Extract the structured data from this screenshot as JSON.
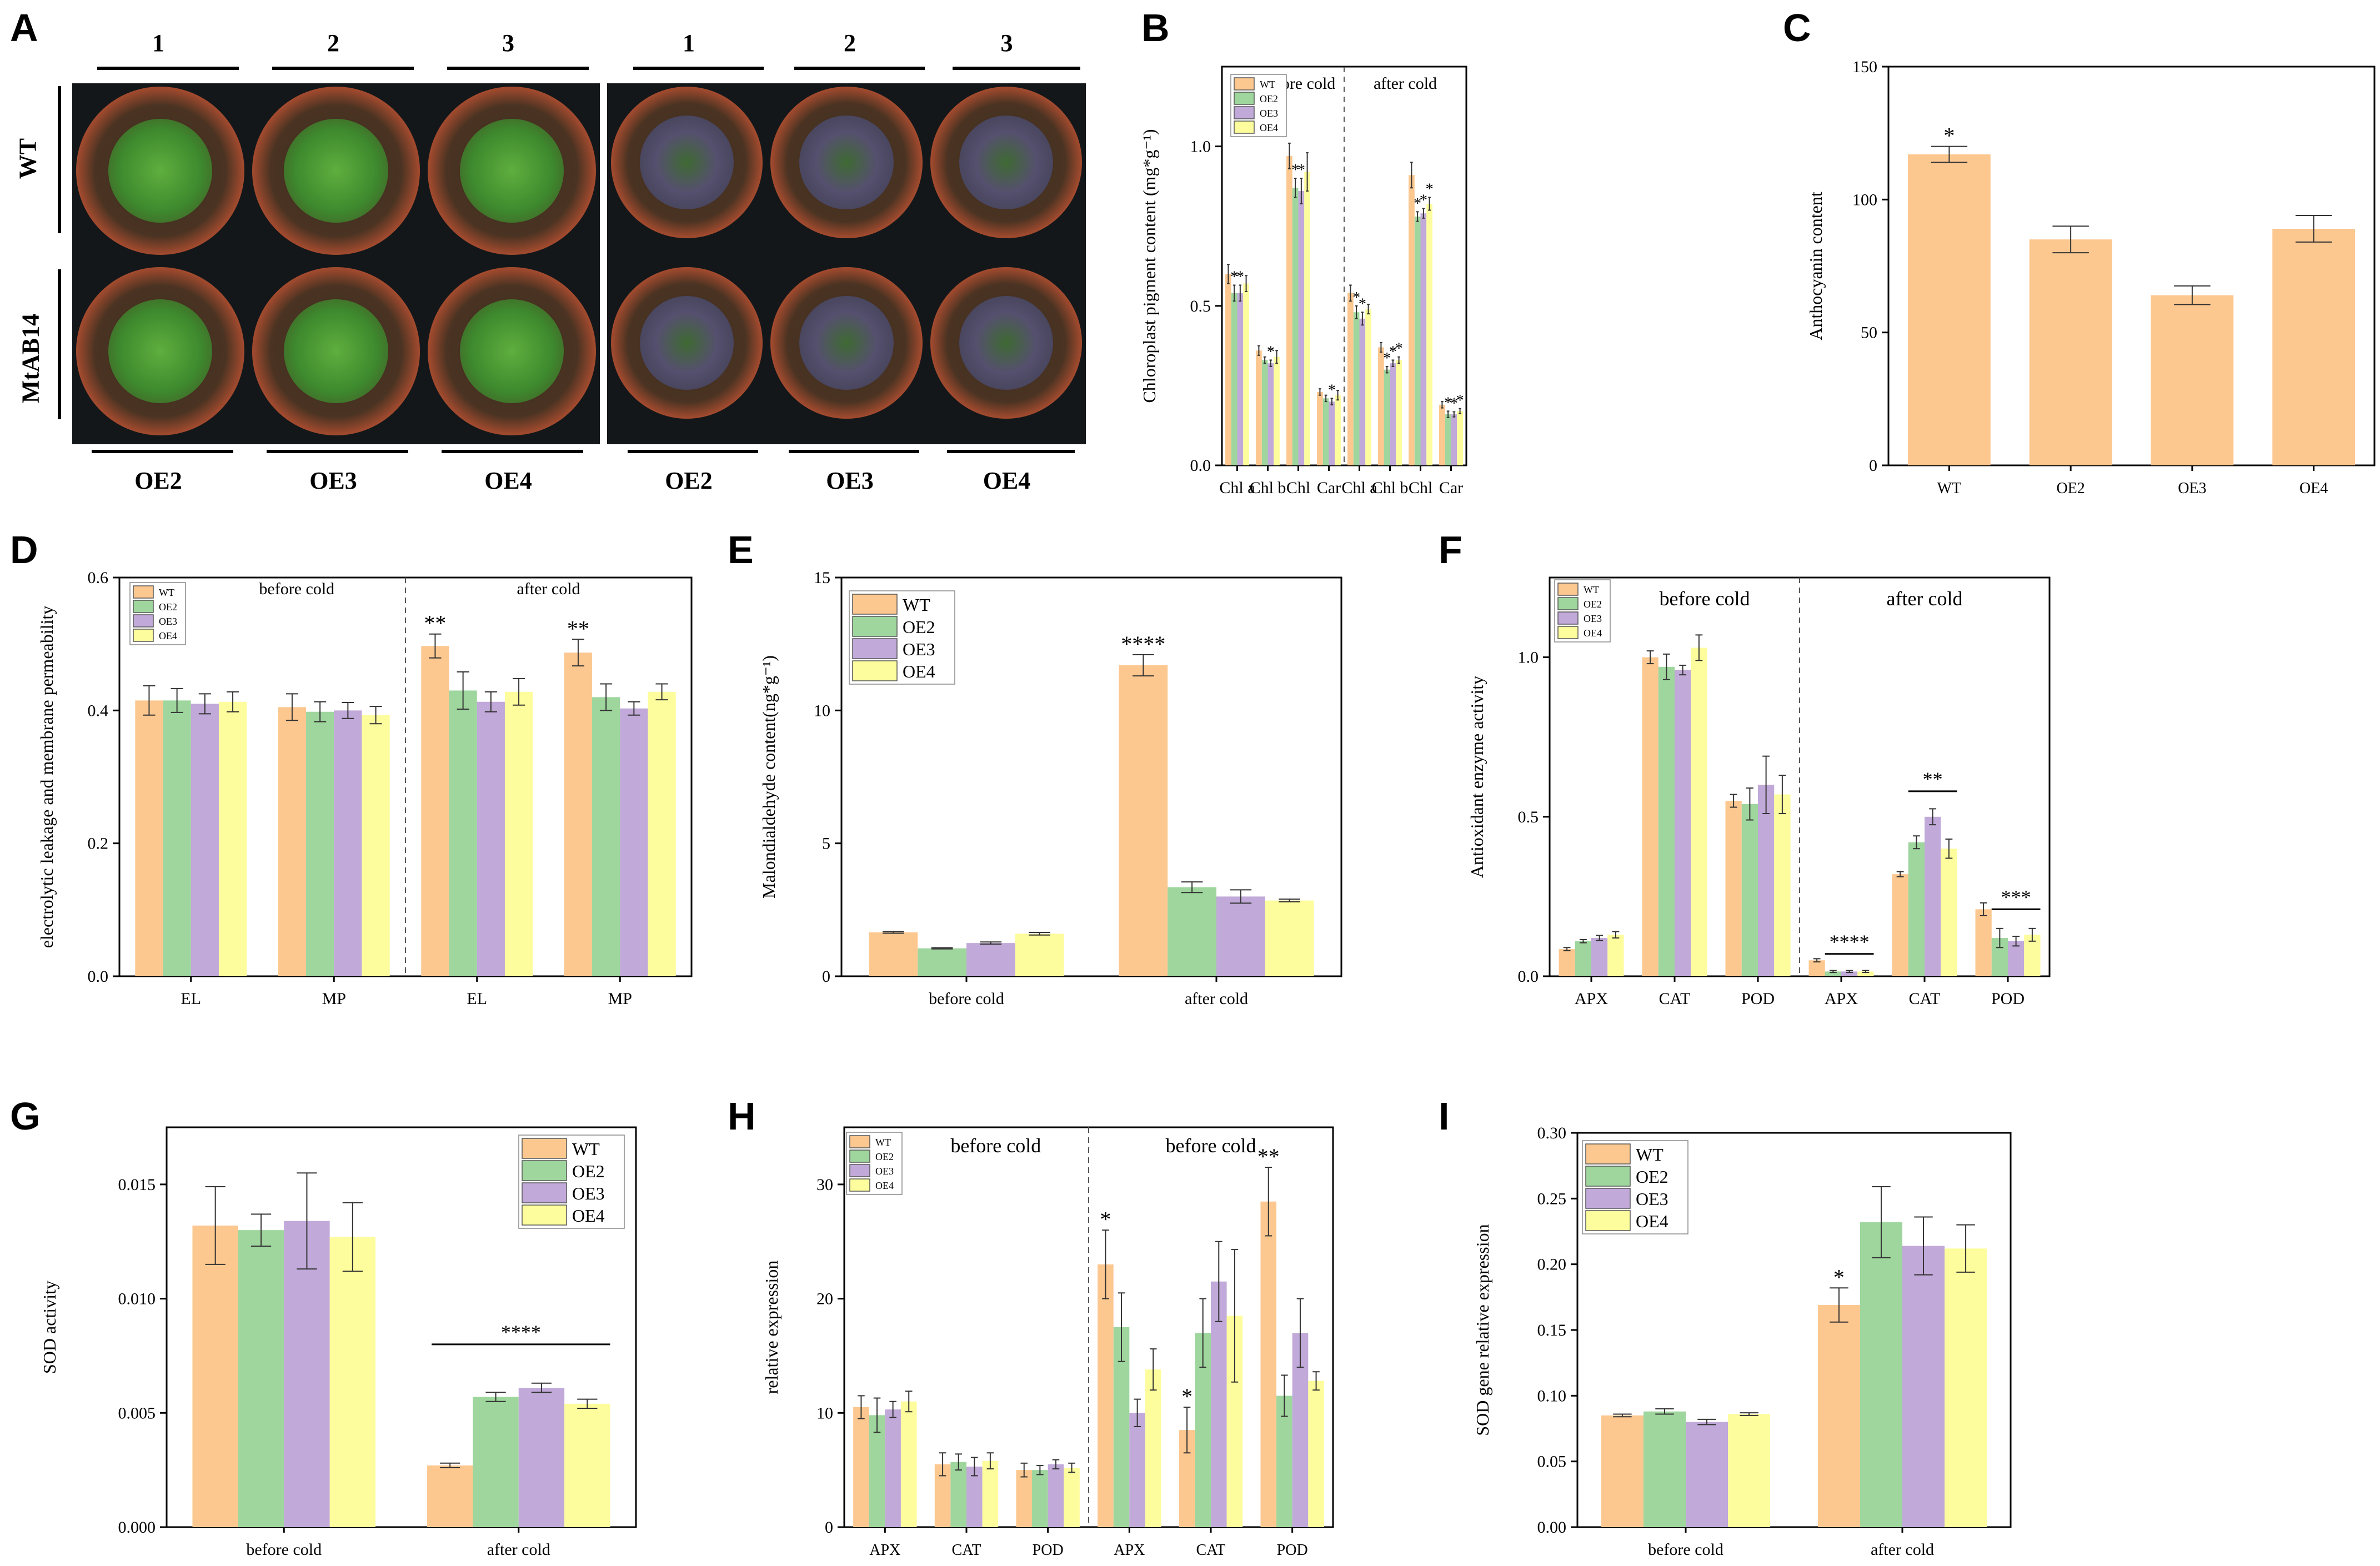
{
  "colors": {
    "WT": "#fcc890",
    "OE2": "#9ed69d",
    "OE3": "#c1a9d9",
    "OE4": "#fdfd9d",
    "stroke": "#000000",
    "pot_rim": "#a14a2e",
    "leaf": "#3e8a2e",
    "leaf_cold": "#4a4a6a"
  },
  "panel_A": {
    "letter": "A",
    "top_labels": [
      "1",
      "2",
      "3",
      "1",
      "2",
      "3"
    ],
    "bottom_labels": [
      "OE2",
      "OE3",
      "OE4",
      "OE2",
      "OE3",
      "OE4"
    ],
    "side_labels": [
      "WT",
      "MtAB14"
    ]
  },
  "chart_data": [
    {
      "id": "B",
      "letter": "B",
      "type": "bar",
      "ylabel": "Chloroplast pigment content (mg*g⁻¹)",
      "ylim": [
        0,
        1.25
      ],
      "yticks": [
        "0.0",
        "0.5",
        "1.0"
      ],
      "ytick_values": [
        0,
        0.5,
        1.0
      ],
      "categories": [
        "Chl a",
        "Chl b",
        "Chl",
        "Car",
        "Chl a",
        "Chl b",
        "Chl",
        "Car"
      ],
      "group_labels": [
        "before cold",
        "after cold"
      ],
      "legend": [
        "WT",
        "OE2",
        "OE3",
        "OE4"
      ],
      "series": [
        {
          "name": "WT",
          "values": [
            0.6,
            0.36,
            0.97,
            0.23,
            0.54,
            0.37,
            0.91,
            0.19
          ],
          "errors": [
            0.03,
            0.015,
            0.04,
            0.01,
            0.025,
            0.015,
            0.04,
            0.01
          ]
        },
        {
          "name": "OE2",
          "values": [
            0.54,
            0.33,
            0.87,
            0.21,
            0.48,
            0.3,
            0.78,
            0.16
          ],
          "errors": [
            0.025,
            0.01,
            0.03,
            0.01,
            0.02,
            0.01,
            0.015,
            0.01
          ]
        },
        {
          "name": "OE3",
          "values": [
            0.54,
            0.32,
            0.86,
            0.2,
            0.46,
            0.32,
            0.79,
            0.16
          ],
          "errors": [
            0.025,
            0.01,
            0.04,
            0.01,
            0.02,
            0.01,
            0.015,
            0.008
          ]
        },
        {
          "name": "OE4",
          "values": [
            0.57,
            0.34,
            0.92,
            0.22,
            0.49,
            0.33,
            0.82,
            0.17
          ],
          "errors": [
            0.025,
            0.02,
            0.06,
            0.015,
            0.015,
            0.01,
            0.02,
            0.008
          ]
        }
      ],
      "annotations": [
        {
          "text": "*",
          "cat": 0,
          "series": 1
        },
        {
          "text": "*",
          "cat": 0,
          "series": 2
        },
        {
          "text": "*",
          "cat": 1,
          "series": 2
        },
        {
          "text": "*",
          "cat": 2,
          "series": 1
        },
        {
          "text": "*",
          "cat": 2,
          "series": 2
        },
        {
          "text": "*",
          "cat": 3,
          "series": 2
        },
        {
          "text": "*",
          "cat": 4,
          "series": 1
        },
        {
          "text": "*",
          "cat": 4,
          "series": 2
        },
        {
          "text": "*",
          "cat": 5,
          "series": 1
        },
        {
          "text": "*",
          "cat": 5,
          "series": 2
        },
        {
          "text": "*",
          "cat": 5,
          "series": 3
        },
        {
          "text": "*",
          "cat": 6,
          "series": 1
        },
        {
          "text": "*",
          "cat": 6,
          "series": 2
        },
        {
          "text": "*",
          "cat": 6,
          "series": 3
        },
        {
          "text": "*",
          "cat": 7,
          "series": 1
        },
        {
          "text": "*",
          "cat": 7,
          "series": 2
        },
        {
          "text": "*",
          "cat": 7,
          "series": 3
        }
      ],
      "brackets": []
    },
    {
      "id": "C",
      "letter": "C",
      "type": "bar",
      "ylabel": "Anthocyanin content",
      "ylim": [
        0,
        150
      ],
      "yticks": [
        "0",
        "50",
        "100",
        "150"
      ],
      "ytick_values": [
        0,
        50,
        100,
        150
      ],
      "categories": [
        "WT",
        "OE2",
        "OE3",
        "OE4"
      ],
      "legend": [],
      "series": [
        {
          "name": "WT",
          "values": [
            117,
            85,
            64,
            89
          ],
          "errors": [
            3,
            5,
            3.5,
            5
          ]
        }
      ],
      "annotations": [
        {
          "text": "*",
          "cat": 0,
          "series": 0
        }
      ],
      "brackets": []
    },
    {
      "id": "D",
      "letter": "D",
      "type": "bar",
      "ylabel": "electrolytic leakage and membrane permeability",
      "ylim": [
        0,
        0.6
      ],
      "yticks": [
        "0.0",
        "0.2",
        "0.4",
        "0.6"
      ],
      "ytick_values": [
        0,
        0.2,
        0.4,
        0.6
      ],
      "categories": [
        "EL",
        "MP",
        "EL",
        "MP"
      ],
      "group_labels": [
        "before cold",
        "after cold"
      ],
      "legend": [
        "WT",
        "OE2",
        "OE3",
        "OE4"
      ],
      "series": [
        {
          "name": "WT",
          "values": [
            0.415,
            0.405,
            0.497,
            0.487
          ],
          "errors": [
            0.022,
            0.02,
            0.018,
            0.02
          ]
        },
        {
          "name": "OE2",
          "values": [
            0.415,
            0.398,
            0.43,
            0.42
          ],
          "errors": [
            0.018,
            0.015,
            0.028,
            0.02
          ]
        },
        {
          "name": "OE3",
          "values": [
            0.41,
            0.4,
            0.413,
            0.403
          ],
          "errors": [
            0.015,
            0.012,
            0.015,
            0.01
          ]
        },
        {
          "name": "OE4",
          "values": [
            0.413,
            0.393,
            0.428,
            0.428
          ],
          "errors": [
            0.015,
            0.013,
            0.02,
            0.012
          ]
        }
      ],
      "annotations": [
        {
          "text": "**",
          "cat": 2,
          "series": 0
        },
        {
          "text": "**",
          "cat": 3,
          "series": 0
        }
      ],
      "brackets": []
    },
    {
      "id": "E",
      "letter": "E",
      "type": "bar",
      "ylabel": "Malondialdehyde content(ng*g⁻¹)",
      "ylim": [
        0,
        15
      ],
      "yticks": [
        "0",
        "5",
        "10",
        "15"
      ],
      "ytick_values": [
        0,
        5,
        10,
        15
      ],
      "categories": [
        "before cold",
        "after cold"
      ],
      "legend": [
        "WT",
        "OE2",
        "OE3",
        "OE4"
      ],
      "series": [
        {
          "name": "WT",
          "values": [
            1.65,
            11.7
          ],
          "errors": [
            0.03,
            0.4
          ]
        },
        {
          "name": "OE2",
          "values": [
            1.05,
            3.35
          ],
          "errors": [
            0.02,
            0.2
          ]
        },
        {
          "name": "OE3",
          "values": [
            1.25,
            3.0
          ],
          "errors": [
            0.04,
            0.25
          ]
        },
        {
          "name": "OE4",
          "values": [
            1.6,
            2.85
          ],
          "errors": [
            0.05,
            0.05
          ]
        }
      ],
      "annotations": [
        {
          "text": "****",
          "cat": 1,
          "series": 0
        }
      ],
      "brackets": []
    },
    {
      "id": "F",
      "letter": "F",
      "type": "bar",
      "ylabel": "Antioxidant enzyme activity",
      "ylim": [
        0,
        1.25
      ],
      "yticks": [
        "0.0",
        "0.5",
        "1.0"
      ],
      "ytick_values": [
        0,
        0.5,
        1.0
      ],
      "categories": [
        "APX",
        "CAT",
        "POD",
        "APX",
        "CAT",
        "POD"
      ],
      "group_labels": [
        "before cold",
        "after cold"
      ],
      "legend": [
        "WT",
        "OE2",
        "OE3",
        "OE4"
      ],
      "series": [
        {
          "name": "WT",
          "values": [
            0.085,
            1.0,
            0.55,
            0.05,
            0.32,
            0.21
          ],
          "errors": [
            0.005,
            0.02,
            0.02,
            0.005,
            0.008,
            0.02
          ]
        },
        {
          "name": "OE2",
          "values": [
            0.11,
            0.97,
            0.54,
            0.015,
            0.42,
            0.12
          ],
          "errors": [
            0.005,
            0.04,
            0.05,
            0.003,
            0.02,
            0.03
          ]
        },
        {
          "name": "OE3",
          "values": [
            0.12,
            0.96,
            0.6,
            0.015,
            0.5,
            0.11
          ],
          "errors": [
            0.008,
            0.015,
            0.09,
            0.003,
            0.025,
            0.015
          ]
        },
        {
          "name": "OE4",
          "values": [
            0.13,
            1.03,
            0.57,
            0.015,
            0.4,
            0.13
          ],
          "errors": [
            0.01,
            0.04,
            0.06,
            0.003,
            0.03,
            0.02
          ]
        }
      ],
      "annotations": [],
      "brackets": [
        {
          "text": "****",
          "cat": 3,
          "value": 0.07
        },
        {
          "text": "**",
          "cat": 4,
          "value": 0.58
        },
        {
          "text": "***",
          "cat": 5,
          "value": 0.21
        }
      ]
    },
    {
      "id": "G",
      "letter": "G",
      "type": "bar",
      "ylabel": "SOD activity",
      "ylim": [
        0,
        0.0175
      ],
      "yticks": [
        "0.000",
        "0.005",
        "0.010",
        "0.015"
      ],
      "ytick_values": [
        0,
        0.005,
        0.01,
        0.015
      ],
      "categories": [
        "before cold",
        "after cold"
      ],
      "legend": [
        "WT",
        "OE2",
        "OE3",
        "OE4"
      ],
      "series": [
        {
          "name": "WT",
          "values": [
            0.0132,
            0.0027
          ],
          "errors": [
            0.0017,
            0.0001
          ]
        },
        {
          "name": "OE2",
          "values": [
            0.013,
            0.0057
          ],
          "errors": [
            0.0007,
            0.0002
          ]
        },
        {
          "name": "OE3",
          "values": [
            0.0134,
            0.0061
          ],
          "errors": [
            0.0021,
            0.0002
          ]
        },
        {
          "name": "OE4",
          "values": [
            0.0127,
            0.0054
          ],
          "errors": [
            0.0015,
            0.0002
          ]
        }
      ],
      "annotations": [],
      "brackets": [
        {
          "text": "****",
          "cat": 1,
          "value": 0.008
        }
      ]
    },
    {
      "id": "H",
      "letter": "H",
      "type": "bar",
      "ylabel": "relative expression",
      "ylim": [
        0,
        35
      ],
      "yticks": [
        "0",
        "10",
        "20",
        "30"
      ],
      "ytick_values": [
        0,
        10,
        20,
        30
      ],
      "categories": [
        "APX",
        "CAT",
        "POD",
        "APX",
        "CAT",
        "POD"
      ],
      "group_labels": [
        "before cold",
        "before cold"
      ],
      "legend": [
        "WT",
        "OE2",
        "OE3",
        "OE4"
      ],
      "series": [
        {
          "name": "WT",
          "values": [
            10.5,
            5.5,
            5.0,
            23.0,
            8.5,
            28.5
          ],
          "errors": [
            1.0,
            1.0,
            0.6,
            3.0,
            2.0,
            3.0
          ]
        },
        {
          "name": "OE2",
          "values": [
            9.8,
            5.7,
            5.0,
            17.5,
            17.0,
            11.5
          ],
          "errors": [
            1.5,
            0.7,
            0.4,
            3.0,
            3.0,
            1.8
          ]
        },
        {
          "name": "OE3",
          "values": [
            10.3,
            5.3,
            5.5,
            10.0,
            21.5,
            17.0
          ],
          "errors": [
            0.7,
            0.8,
            0.4,
            1.2,
            3.5,
            3.0
          ]
        },
        {
          "name": "OE4",
          "values": [
            11.0,
            5.8,
            5.2,
            13.8,
            18.5,
            12.8
          ],
          "errors": [
            0.9,
            0.7,
            0.4,
            1.8,
            5.8,
            0.8
          ]
        }
      ],
      "annotations": [
        {
          "text": "*",
          "cat": 3,
          "series": 0
        },
        {
          "text": "*",
          "cat": 4,
          "series": 0
        },
        {
          "text": "**",
          "cat": 5,
          "series": 0
        }
      ],
      "brackets": []
    },
    {
      "id": "I",
      "letter": "I",
      "type": "bar",
      "ylabel": "SOD gene relative expression",
      "ylim": [
        0,
        0.3
      ],
      "yticks": [
        "0.00",
        "0.05",
        "0.10",
        "0.15",
        "0.20",
        "0.25",
        "0.30"
      ],
      "ytick_values": [
        0,
        0.05,
        0.1,
        0.15,
        0.2,
        0.25,
        0.3
      ],
      "categories": [
        "before cold",
        "after cold"
      ],
      "legend": [
        "WT",
        "OE2",
        "OE3",
        "OE4"
      ],
      "series": [
        {
          "name": "WT",
          "values": [
            0.085,
            0.169
          ],
          "errors": [
            0.001,
            0.013
          ]
        },
        {
          "name": "OE2",
          "values": [
            0.088,
            0.232
          ],
          "errors": [
            0.002,
            0.027
          ]
        },
        {
          "name": "OE3",
          "values": [
            0.08,
            0.214
          ],
          "errors": [
            0.002,
            0.022
          ]
        },
        {
          "name": "OE4",
          "values": [
            0.086,
            0.212
          ],
          "errors": [
            0.001,
            0.018
          ]
        }
      ],
      "annotations": [
        {
          "text": "*",
          "cat": 1,
          "series": 0
        }
      ],
      "brackets": []
    }
  ]
}
